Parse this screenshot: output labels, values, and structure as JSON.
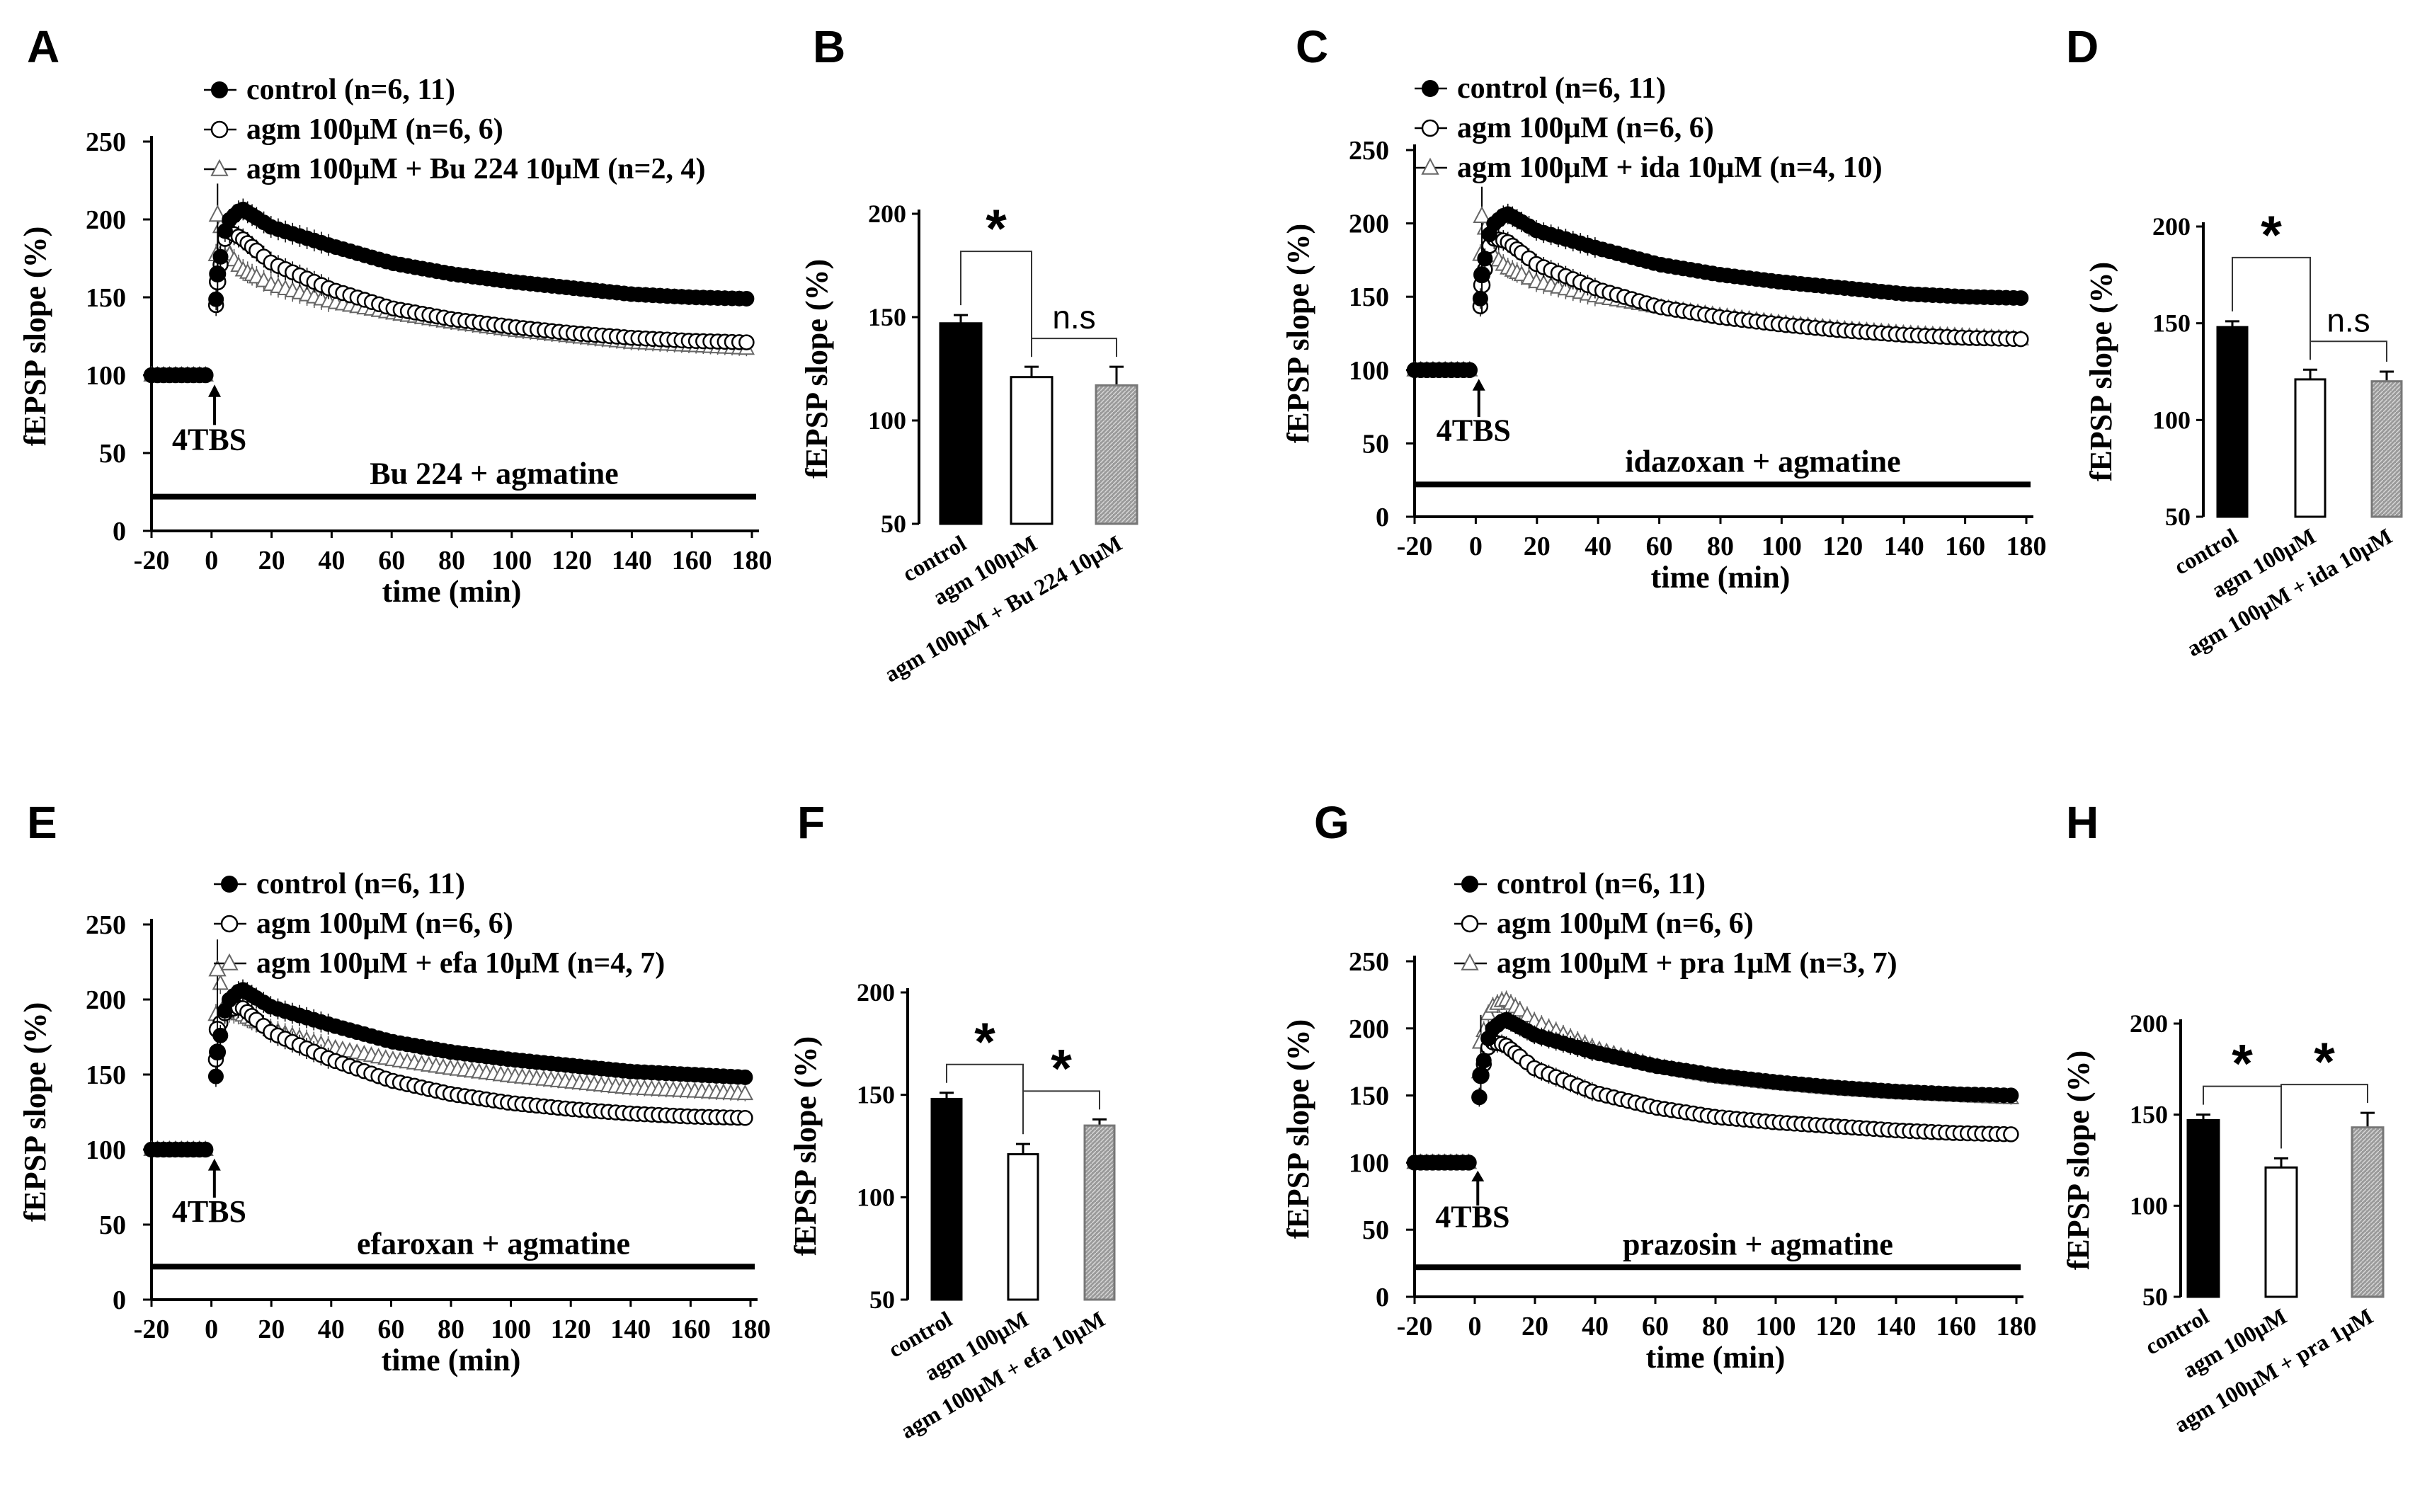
{
  "colors": {
    "ink": "#000000",
    "control": "#000000",
    "agm": "#ffffff",
    "combo": "#a6a6a6",
    "combo_edge": "#777777"
  },
  "chart_data": [
    {
      "id": "A",
      "type": "line",
      "letter": "A",
      "ylabel": "fEPSP slope (%)",
      "xlabel": "time (min)",
      "yticks": [
        0,
        50,
        100,
        150,
        200,
        250
      ],
      "ylim": [
        0,
        250
      ],
      "xticks": [
        -20,
        0,
        20,
        40,
        60,
        80,
        100,
        120,
        140,
        160,
        180
      ],
      "xlim": [
        -20,
        180
      ],
      "stim_label": "4TBS",
      "bar_label": "Bu 224 + agmatine",
      "series": [
        {
          "name": "control (n=6, 11)",
          "marker": "filled-circle",
          "x": [
            -20,
            -10,
            0,
            2,
            5,
            10,
            20,
            40,
            60,
            80,
            100,
            120,
            140,
            160,
            180
          ],
          "y": [
            100,
            100,
            100,
            165,
            198,
            207,
            195,
            183,
            172,
            165,
            160,
            156,
            152,
            150,
            149
          ]
        },
        {
          "name": "agm 100μM (n=6, 6)",
          "marker": "open-circle",
          "x": [
            -20,
            -10,
            0,
            2,
            5,
            10,
            20,
            40,
            60,
            80,
            100,
            120,
            140,
            160,
            180
          ],
          "y": [
            100,
            100,
            100,
            160,
            193,
            188,
            172,
            155,
            143,
            136,
            131,
            127,
            124,
            122,
            121
          ]
        },
        {
          "name": "agm 100μM + Bu 224 10μM (n=2, 4)",
          "marker": "open-triangle",
          "x": [
            -20,
            -10,
            0,
            2,
            5,
            10,
            20,
            40,
            60,
            80,
            100,
            120,
            140,
            160,
            180
          ],
          "y": [
            100,
            100,
            100,
            203,
            180,
            168,
            158,
            147,
            140,
            134,
            129,
            125,
            121,
            119,
            117
          ]
        }
      ]
    },
    {
      "id": "C",
      "type": "line",
      "letter": "C",
      "ylabel": "fEPSP slope (%)",
      "xlabel": "time (min)",
      "yticks": [
        0,
        50,
        100,
        150,
        200,
        250
      ],
      "ylim": [
        0,
        250
      ],
      "xticks": [
        -20,
        0,
        20,
        40,
        60,
        80,
        100,
        120,
        140,
        160,
        180
      ],
      "xlim": [
        -20,
        180
      ],
      "stim_label": "4TBS",
      "bar_label": "idazoxan + agmatine",
      "series": [
        {
          "name": "control (n=6, 11)",
          "marker": "filled-circle",
          "x": [
            -20,
            -10,
            0,
            2,
            5,
            10,
            20,
            40,
            60,
            80,
            100,
            120,
            140,
            160,
            180
          ],
          "y": [
            100,
            100,
            100,
            165,
            198,
            207,
            195,
            183,
            172,
            165,
            160,
            156,
            152,
            150,
            149
          ]
        },
        {
          "name": "agm 100μM (n=6, 6)",
          "marker": "open-circle",
          "x": [
            -20,
            -10,
            0,
            2,
            5,
            10,
            20,
            40,
            60,
            80,
            100,
            120,
            140,
            160,
            180
          ],
          "y": [
            100,
            100,
            100,
            158,
            190,
            188,
            172,
            155,
            143,
            136,
            131,
            127,
            124,
            122,
            121
          ]
        },
        {
          "name": "agm 100μM + ida 10μM (n=4, 10)",
          "marker": "open-triangle",
          "x": [
            -20,
            -10,
            0,
            2,
            5,
            10,
            20,
            40,
            60,
            80,
            100,
            120,
            140,
            160,
            180
          ],
          "y": [
            100,
            100,
            100,
            205,
            180,
            170,
            160,
            150,
            143,
            137,
            132,
            128,
            125,
            123,
            121
          ]
        }
      ]
    },
    {
      "id": "E",
      "type": "line",
      "letter": "E",
      "ylabel": "fEPSP slope (%)",
      "xlabel": "time (min)",
      "yticks": [
        0,
        50,
        100,
        150,
        200,
        250
      ],
      "ylim": [
        0,
        250
      ],
      "xticks": [
        -20,
        0,
        20,
        40,
        60,
        80,
        100,
        120,
        140,
        160,
        180
      ],
      "xlim": [
        -20,
        180
      ],
      "stim_label": "4TBS",
      "bar_label": "efaroxan + agmatine",
      "series": [
        {
          "name": "control (n=6, 11)",
          "marker": "filled-circle",
          "x": [
            -20,
            -10,
            0,
            2,
            5,
            10,
            20,
            40,
            60,
            80,
            100,
            120,
            140,
            160,
            180
          ],
          "y": [
            100,
            100,
            100,
            165,
            198,
            207,
            195,
            183,
            172,
            165,
            160,
            156,
            152,
            150,
            148
          ]
        },
        {
          "name": "agm 100μM (n=6, 6)",
          "marker": "open-circle",
          "x": [
            -20,
            -10,
            0,
            2,
            5,
            10,
            20,
            40,
            60,
            80,
            100,
            120,
            140,
            160,
            180
          ],
          "y": [
            100,
            100,
            100,
            180,
            193,
            195,
            178,
            160,
            146,
            137,
            131,
            127,
            124,
            122,
            121
          ]
        },
        {
          "name": "agm 100μM + efa 10μM (n=4, 7)",
          "marker": "open-triangle",
          "x": [
            -20,
            -10,
            0,
            2,
            5,
            10,
            20,
            40,
            60,
            80,
            100,
            120,
            140,
            160,
            180
          ],
          "y": [
            100,
            100,
            100,
            220,
            192,
            190,
            180,
            168,
            160,
            154,
            149,
            145,
            141,
            139,
            137
          ]
        }
      ]
    },
    {
      "id": "G",
      "type": "line",
      "letter": "G",
      "ylabel": "fEPSP slope (%)",
      "xlabel": "time (min)",
      "yticks": [
        0,
        50,
        100,
        150,
        200,
        250
      ],
      "ylim": [
        0,
        250
      ],
      "xticks": [
        -20,
        0,
        20,
        40,
        60,
        80,
        100,
        120,
        140,
        160,
        180
      ],
      "xlim": [
        -20,
        180
      ],
      "stim_label": "4TBS",
      "bar_label": "prazosin + agmatine",
      "series": [
        {
          "name": "control (n=6, 11)",
          "marker": "filled-circle",
          "x": [
            -20,
            -10,
            0,
            2,
            5,
            10,
            20,
            40,
            60,
            80,
            100,
            120,
            140,
            160,
            180
          ],
          "y": [
            100,
            100,
            100,
            165,
            198,
            207,
            195,
            182,
            172,
            165,
            160,
            156,
            153,
            151,
            150
          ]
        },
        {
          "name": "agm 100μM (n=6, 6)",
          "marker": "open-circle",
          "x": [
            -20,
            -10,
            0,
            2,
            5,
            10,
            20,
            40,
            60,
            80,
            100,
            120,
            140,
            160,
            180
          ],
          "y": [
            100,
            100,
            100,
            165,
            190,
            188,
            170,
            152,
            141,
            134,
            130,
            127,
            124,
            122,
            121
          ]
        },
        {
          "name": "agm 100μM + pra 1μM (n=3, 7)",
          "marker": "open-triangle",
          "x": [
            -20,
            -10,
            0,
            2,
            5,
            10,
            20,
            40,
            60,
            80,
            100,
            120,
            140,
            160,
            180
          ],
          "y": [
            100,
            100,
            100,
            190,
            215,
            222,
            205,
            185,
            172,
            164,
            159,
            155,
            152,
            150,
            148
          ]
        }
      ]
    },
    {
      "id": "B",
      "type": "bar",
      "letter": "B",
      "ylabel": "fEPSP slope (%)",
      "yticks": [
        50,
        100,
        150,
        200
      ],
      "ylim": [
        50,
        200
      ],
      "categories": [
        "control",
        "agm 100μM",
        "agm 100μM + Bu 224 10μM"
      ],
      "values": [
        147,
        121,
        117
      ],
      "errors": [
        4,
        5,
        9
      ],
      "sig": [
        {
          "from": 0,
          "to": 1,
          "label": "*"
        },
        {
          "from": 1,
          "to": 2,
          "label": "n.s"
        }
      ]
    },
    {
      "id": "D",
      "type": "bar",
      "letter": "D",
      "ylabel": "fEPSP slope (%)",
      "yticks": [
        50,
        100,
        150,
        200
      ],
      "ylim": [
        50,
        200
      ],
      "categories": [
        "control",
        "agm 100μM",
        "agm 100μM + ida 10μM"
      ],
      "values": [
        148,
        121,
        120
      ],
      "errors": [
        3,
        5,
        5
      ],
      "sig": [
        {
          "from": 0,
          "to": 1,
          "label": "*"
        },
        {
          "from": 1,
          "to": 2,
          "label": "n.s"
        }
      ]
    },
    {
      "id": "F",
      "type": "bar",
      "letter": "F",
      "ylabel": "fEPSP slope (%)",
      "yticks": [
        50,
        100,
        150,
        200
      ],
      "ylim": [
        50,
        200
      ],
      "categories": [
        "control",
        "agm 100μM",
        "agm 100μM + efa 10μM"
      ],
      "values": [
        148,
        121,
        135
      ],
      "errors": [
        3,
        5,
        3
      ],
      "sig": [
        {
          "from": 0,
          "to": 1,
          "label": "*"
        },
        {
          "from": 1,
          "to": 2,
          "label": "*"
        }
      ]
    },
    {
      "id": "H",
      "type": "bar",
      "letter": "H",
      "ylabel": "fEPSP slope (%)",
      "yticks": [
        50,
        100,
        150,
        200
      ],
      "ylim": [
        50,
        200
      ],
      "categories": [
        "control",
        "agm 100μM",
        "agm 100μM + pra 1μM"
      ],
      "values": [
        147,
        121,
        143
      ],
      "errors": [
        3,
        5,
        8
      ],
      "sig": [
        {
          "from": 0,
          "to": 1,
          "label": "*"
        },
        {
          "from": 1,
          "to": 2,
          "label": "*"
        }
      ]
    }
  ]
}
